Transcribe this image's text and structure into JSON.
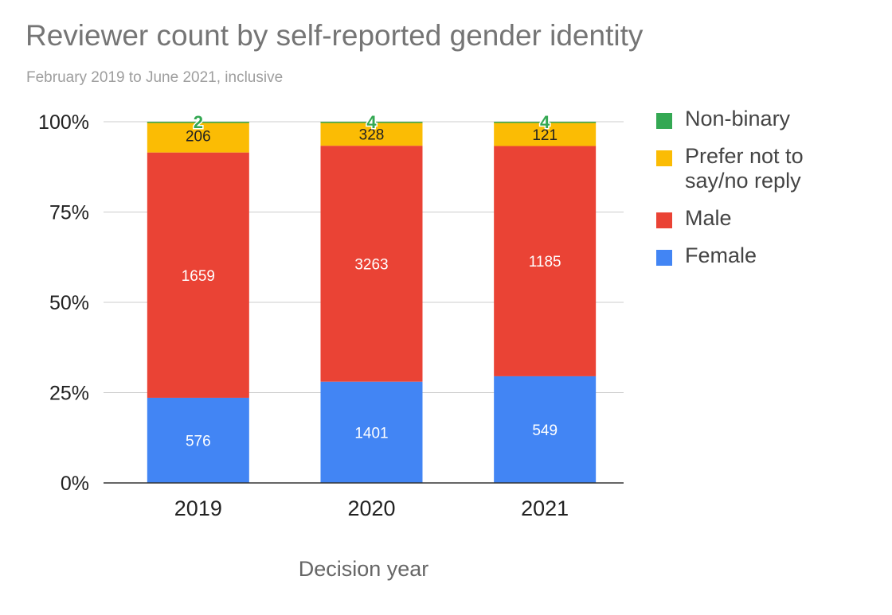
{
  "chart_data": {
    "type": "bar",
    "stacked": "percent",
    "title": "Reviewer count by self-reported gender identity",
    "subtitle": "February 2019 to June 2021, inclusive",
    "xlabel": "Decision year",
    "ylabel": "",
    "categories": [
      "2019",
      "2020",
      "2021"
    ],
    "series": [
      {
        "name": "Female",
        "values": [
          576,
          1401,
          549
        ],
        "color": "#4285f4",
        "label_color": "#ffffff"
      },
      {
        "name": "Male",
        "values": [
          1659,
          3263,
          1185
        ],
        "color": "#ea4335",
        "label_color": "#ffffff"
      },
      {
        "name": "Prefer not to say/no reply",
        "values": [
          206,
          328,
          121
        ],
        "color": "#fbbc04",
        "label_color": "#222222"
      },
      {
        "name": "Non-binary",
        "values": [
          2,
          4,
          4
        ],
        "color": "#34a853",
        "label_color": "#34a853"
      }
    ],
    "yticks": [
      "0%",
      "25%",
      "50%",
      "75%",
      "100%"
    ],
    "ylim": [
      0,
      100
    ],
    "grid": true,
    "legend": "right",
    "legend_order": [
      "Non-binary",
      "Prefer not to say/no reply",
      "Male",
      "Female"
    ]
  }
}
